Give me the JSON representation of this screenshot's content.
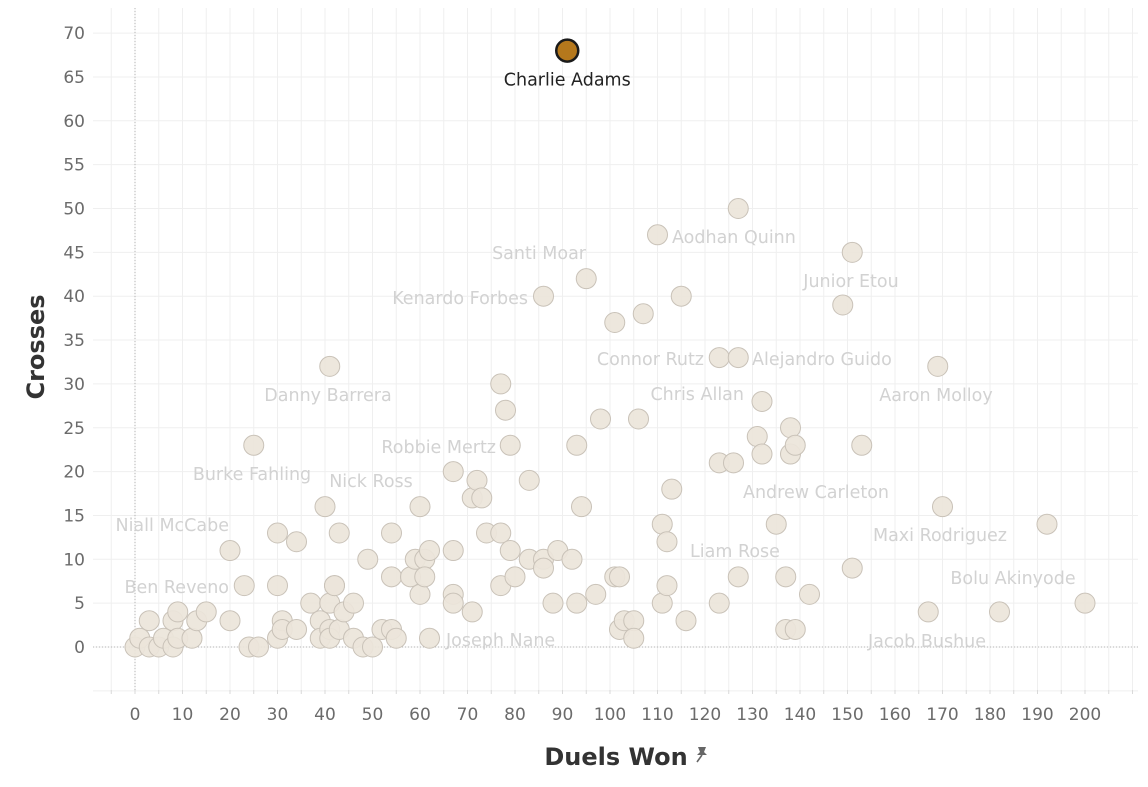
{
  "colors": {
    "point_fill": "#ece5da",
    "point_stroke": "#c9c2b8",
    "highlight_fill": "#b5781c",
    "highlight_stroke": "#1a1a1a",
    "grid": "#efefef",
    "zero_line": "#b5b5b5",
    "muted_label": "#d2d2d2",
    "highlight_label": "#222222"
  },
  "icons": {
    "x_axis_pin": "pin-icon"
  },
  "chart_data": {
    "type": "scatter",
    "xlabel": "Duels Won",
    "ylabel": "Crosses",
    "xlim": [
      -9,
      211
    ],
    "ylim": [
      -5,
      73
    ],
    "x_ticks": [
      0,
      10,
      20,
      30,
      40,
      50,
      60,
      70,
      80,
      90,
      100,
      110,
      120,
      130,
      140,
      150,
      160,
      170,
      180,
      190,
      200
    ],
    "y_ticks": [
      0,
      5,
      10,
      15,
      20,
      25,
      30,
      35,
      40,
      45,
      50,
      55,
      60,
      65,
      70
    ],
    "grid": true,
    "legend": "none",
    "highlight": {
      "name": "Charlie Adams",
      "x": 91,
      "y": 68
    },
    "labels": [
      {
        "text": "Aodhan Quinn",
        "x": 110,
        "y": 47
      },
      {
        "text": "Santi Moar",
        "x": 95,
        "y": 42
      },
      {
        "text": "Kenardo Forbes",
        "x": 86,
        "y": 40
      },
      {
        "text": "Junior Etou",
        "x": 151,
        "y": 39
      },
      {
        "text": "Connor Rutz",
        "x": 124,
        "y": 33
      },
      {
        "text": "Alejandro Guido",
        "x": 127,
        "y": 33
      },
      {
        "text": "Danny Barrera",
        "x": 41,
        "y": 32
      },
      {
        "text": "Aaron Molloy",
        "x": 169,
        "y": 32
      },
      {
        "text": "Chris Allan",
        "x": 131,
        "y": 28
      },
      {
        "text": "Robbie Mertz",
        "x": 79,
        "y": 23
      },
      {
        "text": "Burke Fahling",
        "x": 25,
        "y": 23
      },
      {
        "text": "Nick Ross",
        "x": 40,
        "y": 16
      },
      {
        "text": "Andrew Carleton",
        "x": 135,
        "y": 14
      },
      {
        "text": "Niall McCabe",
        "x": 20,
        "y": 11
      },
      {
        "text": "Maxi Rodriguez",
        "x": 170,
        "y": 16
      },
      {
        "text": "Liam Rose",
        "x": 127,
        "y": 8
      },
      {
        "text": "Bolu Akinyode",
        "x": 192,
        "y": 14
      },
      {
        "text": "Ben Reveno",
        "x": 20,
        "y": 3
      },
      {
        "text": "Joseph Nane",
        "x": 62,
        "y": 1
      },
      {
        "text": "Jacob Bushue",
        "x": 167,
        "y": 4
      }
    ],
    "points": [
      [
        0,
        0
      ],
      [
        1,
        1
      ],
      [
        3,
        0
      ],
      [
        3,
        3
      ],
      [
        5,
        0
      ],
      [
        6,
        1
      ],
      [
        8,
        3
      ],
      [
        8,
        0
      ],
      [
        9,
        4
      ],
      [
        9,
        1
      ],
      [
        12,
        1
      ],
      [
        13,
        3
      ],
      [
        15,
        4
      ],
      [
        20,
        11
      ],
      [
        20,
        3
      ],
      [
        23,
        7
      ],
      [
        24,
        0
      ],
      [
        25,
        23
      ],
      [
        26,
        0
      ],
      [
        30,
        13
      ],
      [
        30,
        7
      ],
      [
        30,
        1
      ],
      [
        31,
        3
      ],
      [
        31,
        2
      ],
      [
        34,
        12
      ],
      [
        34,
        2
      ],
      [
        37,
        5
      ],
      [
        39,
        3
      ],
      [
        39,
        1
      ],
      [
        40,
        16
      ],
      [
        41,
        32
      ],
      [
        41,
        5
      ],
      [
        41,
        2
      ],
      [
        41,
        1
      ],
      [
        42,
        7
      ],
      [
        42,
        7
      ],
      [
        43,
        13
      ],
      [
        43,
        2
      ],
      [
        44,
        4
      ],
      [
        46,
        5
      ],
      [
        46,
        1
      ],
      [
        48,
        0
      ],
      [
        49,
        10
      ],
      [
        50,
        0
      ],
      [
        52,
        2
      ],
      [
        54,
        13
      ],
      [
        54,
        8
      ],
      [
        54,
        2
      ],
      [
        55,
        1
      ],
      [
        58,
        8
      ],
      [
        59,
        10
      ],
      [
        60,
        16
      ],
      [
        60,
        6
      ],
      [
        61,
        10
      ],
      [
        61,
        8
      ],
      [
        62,
        11
      ],
      [
        62,
        1
      ],
      [
        67,
        20
      ],
      [
        67,
        11
      ],
      [
        67,
        6
      ],
      [
        67,
        5
      ],
      [
        71,
        17
      ],
      [
        71,
        4
      ],
      [
        72,
        19
      ],
      [
        73,
        17
      ],
      [
        74,
        13
      ],
      [
        77,
        30
      ],
      [
        77,
        13
      ],
      [
        77,
        7
      ],
      [
        78,
        27
      ],
      [
        79,
        23
      ],
      [
        79,
        11
      ],
      [
        80,
        8
      ],
      [
        83,
        19
      ],
      [
        83,
        10
      ],
      [
        86,
        40
      ],
      [
        86,
        10
      ],
      [
        86,
        9
      ],
      [
        88,
        5
      ],
      [
        89,
        11
      ],
      [
        91,
        68
      ],
      [
        92,
        10
      ],
      [
        93,
        23
      ],
      [
        93,
        5
      ],
      [
        94,
        16
      ],
      [
        95,
        42
      ],
      [
        97,
        6
      ],
      [
        98,
        26
      ],
      [
        101,
        37
      ],
      [
        101,
        8
      ],
      [
        102,
        8
      ],
      [
        102,
        2
      ],
      [
        103,
        3
      ],
      [
        105,
        3
      ],
      [
        105,
        1
      ],
      [
        106,
        26
      ],
      [
        107,
        38
      ],
      [
        110,
        47
      ],
      [
        111,
        14
      ],
      [
        111,
        5
      ],
      [
        112,
        12
      ],
      [
        112,
        7
      ],
      [
        113,
        18
      ],
      [
        115,
        40
      ],
      [
        116,
        3
      ],
      [
        123,
        33
      ],
      [
        123,
        21
      ],
      [
        123,
        5
      ],
      [
        126,
        21
      ],
      [
        127,
        50
      ],
      [
        127,
        33
      ],
      [
        127,
        8
      ],
      [
        131,
        24
      ],
      [
        132,
        28
      ],
      [
        132,
        22
      ],
      [
        135,
        14
      ],
      [
        137,
        8
      ],
      [
        137,
        2
      ],
      [
        138,
        25
      ],
      [
        138,
        22
      ],
      [
        139,
        23
      ],
      [
        139,
        2
      ],
      [
        142,
        6
      ],
      [
        149,
        39
      ],
      [
        151,
        45
      ],
      [
        151,
        9
      ],
      [
        153,
        23
      ],
      [
        167,
        4
      ],
      [
        169,
        32
      ],
      [
        170,
        16
      ],
      [
        182,
        4
      ],
      [
        192,
        14
      ],
      [
        200,
        5
      ]
    ]
  }
}
